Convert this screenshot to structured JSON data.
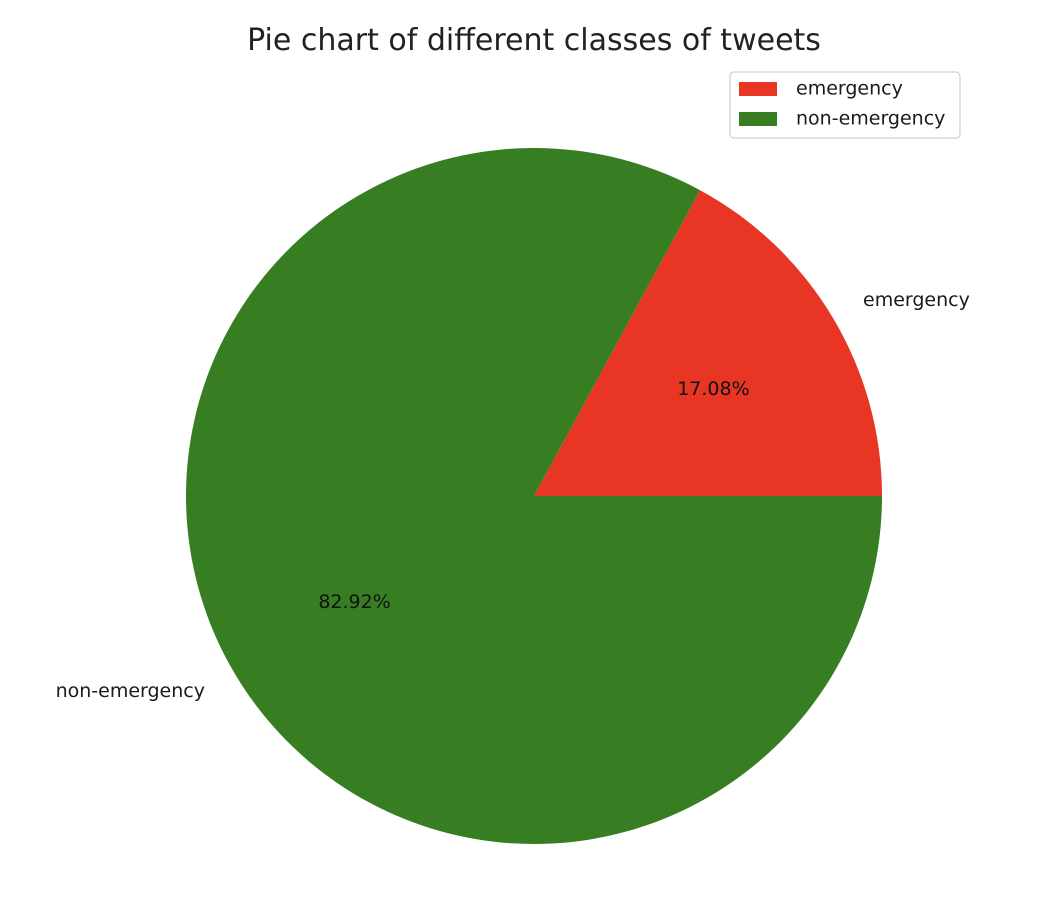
{
  "chart_data": {
    "type": "pie",
    "title": "Pie chart of different classes of tweets",
    "slices": [
      {
        "label": "emergency",
        "value": 17.08,
        "pct_label": "17.08%",
        "color": "#e83524"
      },
      {
        "label": "non-emergency",
        "value": 82.92,
        "pct_label": "82.92%",
        "color": "#377e22"
      }
    ],
    "legend": {
      "position": "top-right",
      "entries": [
        "emergency",
        "non-emergency"
      ]
    }
  }
}
